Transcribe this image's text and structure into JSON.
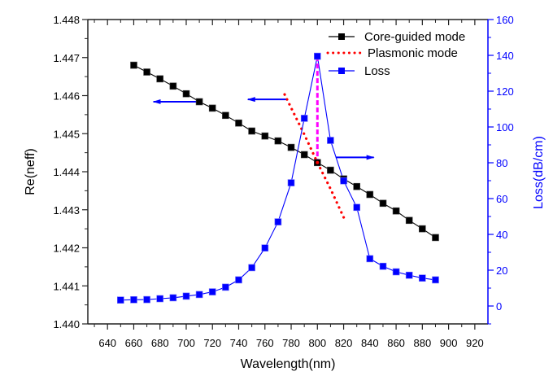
{
  "chart_data": {
    "type": "line",
    "title": "",
    "xlabel": "Wavelength(nm)",
    "ylabel": "Re(neff)",
    "y2label": "Loss(dB/cm)",
    "xlim": [
      625,
      930
    ],
    "ylim": [
      1.44,
      1.448
    ],
    "y2lim": [
      -10,
      160
    ],
    "grid": false,
    "legend_position": "top-right",
    "x_ticks": [
      640,
      660,
      680,
      700,
      720,
      740,
      760,
      780,
      800,
      820,
      840,
      860,
      880,
      900,
      920
    ],
    "x_tick_labels": [
      "640",
      "660",
      "680",
      "700",
      "720",
      "740",
      "760",
      "780",
      "800",
      "820",
      "840",
      "860",
      "880",
      "900",
      "920"
    ],
    "y_ticks": [
      1.44,
      1.441,
      1.442,
      1.443,
      1.444,
      1.445,
      1.446,
      1.447,
      1.448
    ],
    "y_tick_labels": [
      "1.440",
      "1.441",
      "1.442",
      "1.443",
      "1.444",
      "1.445",
      "1.446",
      "1.447",
      "1.448"
    ],
    "y2_ticks": [
      0,
      20,
      40,
      60,
      80,
      100,
      120,
      140,
      160
    ],
    "y2_tick_labels": [
      "0",
      "20",
      "40",
      "60",
      "80",
      "100",
      "120",
      "140",
      "160"
    ],
    "series": [
      {
        "name": "Core-guided mode",
        "axis": "left",
        "color": "#000000",
        "marker": "square",
        "x": [
          660,
          670,
          680,
          690,
          700,
          710,
          720,
          730,
          740,
          750,
          760,
          770,
          780,
          790,
          800,
          810,
          820,
          830,
          840,
          850,
          860,
          870,
          880,
          890
        ],
        "y": [
          1.4468,
          1.44662,
          1.44644,
          1.44625,
          1.44605,
          1.44584,
          1.44567,
          1.44548,
          1.44528,
          1.44507,
          1.44494,
          1.44481,
          1.44464,
          1.44445,
          1.44424,
          1.44404,
          1.44381,
          1.44361,
          1.4434,
          1.44317,
          1.44297,
          1.44272,
          1.4425,
          1.44227
        ]
      },
      {
        "name": "Plasmonic mode",
        "axis": "left",
        "color": "#ff0000",
        "marker": "none",
        "linestyle": "dotted",
        "x": [
          775,
          780,
          790,
          800,
          810,
          820
        ],
        "y": [
          1.44603,
          1.44568,
          1.44498,
          1.44424,
          1.44355,
          1.4428
        ]
      },
      {
        "name": "Loss",
        "axis": "right",
        "color": "#0000ff",
        "marker": "square",
        "x": [
          650,
          660,
          670,
          680,
          690,
          700,
          710,
          720,
          730,
          740,
          750,
          760,
          770,
          780,
          790,
          800,
          810,
          820,
          830,
          840,
          850,
          860,
          870,
          880,
          890
        ],
        "y": [
          3.3,
          3.5,
          3.6,
          4.1,
          4.6,
          5.5,
          6.4,
          7.9,
          10.5,
          14.6,
          21.4,
          32.4,
          47.0,
          68.8,
          104.8,
          139.5,
          92.5,
          69.9,
          55.1,
          26.4,
          22.2,
          19.1,
          17.2,
          15.6,
          14.6
        ]
      }
    ],
    "annotations": [
      {
        "type": "dashed-vline",
        "color": "#ff00ff",
        "x": 800,
        "from_y2": 139.5,
        "to_y": 1.44424
      },
      {
        "type": "arrow",
        "direction": "left",
        "axis": "left",
        "from_x": 710,
        "to_x": 675,
        "y": 1.44584,
        "color": "#0000ff"
      },
      {
        "type": "arrow",
        "direction": "left",
        "axis": "left",
        "from_x": 776,
        "to_x": 747,
        "y": 1.4459,
        "color": "#0000ff"
      },
      {
        "type": "arrow",
        "direction": "right",
        "axis": "right",
        "from_x": 814,
        "to_x": 843,
        "y2": 83.0,
        "color": "#0000ff"
      }
    ]
  }
}
